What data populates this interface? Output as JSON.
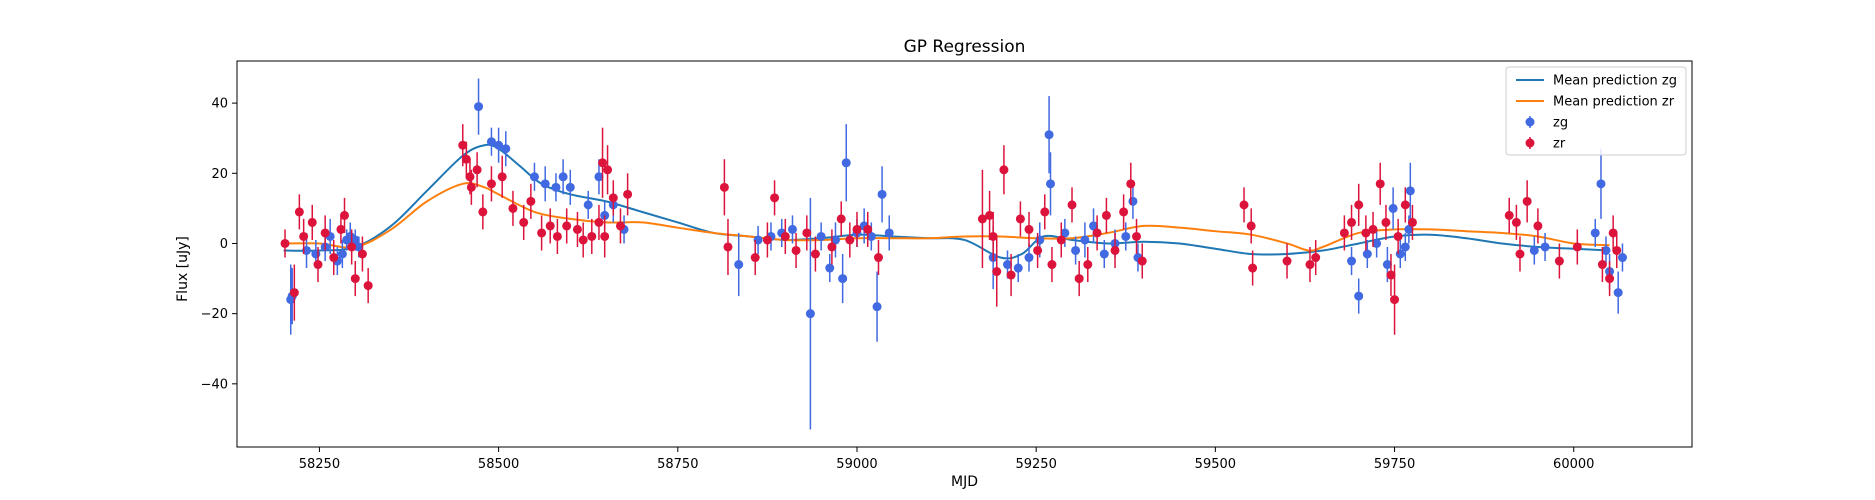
{
  "chart_data": {
    "type": "scatter",
    "title": "GP Regression",
    "xlabel": "MJD",
    "ylabel": "Flux [uJy]",
    "xlim": [
      58135,
      60165
    ],
    "ylim": [
      -58,
      52
    ],
    "xticks": [
      58250,
      58500,
      58750,
      59000,
      59250,
      59500,
      59750,
      60000
    ],
    "yticks": [
      -40,
      -20,
      0,
      20,
      40
    ],
    "grid": false,
    "legend_position": "top-right",
    "colors": {
      "zg": "#4169e1",
      "zr": "#dc143c",
      "mean_zg": "#1f77b4",
      "mean_zr": "#ff7f0e"
    },
    "lines": [
      {
        "name": "Mean prediction zg",
        "x": [
          58200,
          58250,
          58300,
          58350,
          58400,
          58450,
          58480,
          58500,
          58530,
          58560,
          58600,
          58650,
          58700,
          58750,
          58800,
          58850,
          58900,
          58950,
          59000,
          59050,
          59100,
          59150,
          59200,
          59230,
          59260,
          59300,
          59350,
          59400,
          59450,
          59500,
          59550,
          59600,
          59650,
          59700,
          59750,
          59800,
          59850,
          59900,
          59950,
          60000,
          60050
        ],
        "y": [
          -2,
          -2,
          -1,
          5,
          15,
          25,
          28,
          27,
          22,
          17,
          14,
          12,
          9,
          6,
          3,
          2,
          1,
          1.5,
          2.5,
          2,
          1.5,
          1,
          -4,
          -3,
          2,
          1,
          0,
          0.5,
          0,
          -1.5,
          -3,
          -3,
          -2,
          0,
          2,
          2.5,
          1.5,
          0,
          -1,
          -1.5,
          -2
        ]
      },
      {
        "name": "Mean prediction zr",
        "x": [
          58200,
          58250,
          58300,
          58350,
          58400,
          58450,
          58480,
          58500,
          58550,
          58600,
          58650,
          58700,
          58750,
          58800,
          58850,
          58900,
          58950,
          59000,
          59050,
          59100,
          59150,
          59200,
          59250,
          59300,
          59350,
          59400,
          59450,
          59500,
          59550,
          59600,
          59630,
          59650,
          59700,
          59750,
          59800,
          59850,
          59900,
          59950,
          60000,
          60050
        ],
        "y": [
          0,
          0,
          -1,
          4,
          12,
          17,
          16,
          14,
          9,
          7,
          6,
          6,
          4.5,
          3,
          2,
          1,
          1,
          1.5,
          1.5,
          1.5,
          2,
          2,
          1.5,
          1.5,
          3,
          5,
          4.5,
          3.5,
          2.5,
          0,
          -2,
          -1,
          3,
          4,
          4,
          3.5,
          3,
          2,
          0,
          -0.5
        ]
      }
    ],
    "series": [
      {
        "name": "zg",
        "points": [
          [
            58210,
            -16,
            10
          ],
          [
            58212,
            -15,
            8
          ],
          [
            58232,
            -2,
            5
          ],
          [
            58245,
            -3,
            4
          ],
          [
            58258,
            -1,
            4
          ],
          [
            58265,
            2,
            5
          ],
          [
            58275,
            -5,
            4
          ],
          [
            58282,
            -3,
            4
          ],
          [
            58288,
            1,
            3
          ],
          [
            58293,
            2,
            4
          ],
          [
            58300,
            1,
            3
          ],
          [
            58305,
            -1,
            3
          ],
          [
            58472,
            39,
            8
          ],
          [
            58490,
            29,
            4
          ],
          [
            58500,
            28,
            5
          ],
          [
            58510,
            27,
            5
          ],
          [
            58550,
            19,
            4
          ],
          [
            58565,
            17,
            5
          ],
          [
            58580,
            16,
            4
          ],
          [
            58590,
            19,
            5
          ],
          [
            58600,
            16,
            5
          ],
          [
            58625,
            11,
            4
          ],
          [
            58640,
            19,
            5
          ],
          [
            58648,
            8,
            4
          ],
          [
            58660,
            11,
            5
          ],
          [
            58675,
            4,
            4
          ],
          [
            58835,
            -6,
            9
          ],
          [
            58862,
            1,
            4
          ],
          [
            58880,
            2,
            4
          ],
          [
            58895,
            3,
            4
          ],
          [
            58910,
            4,
            4
          ],
          [
            58935,
            -20,
            33
          ],
          [
            58950,
            2,
            4
          ],
          [
            58962,
            -7,
            4
          ],
          [
            58970,
            1,
            5
          ],
          [
            58980,
            -10,
            7
          ],
          [
            58985,
            23,
            11
          ],
          [
            59000,
            3,
            4
          ],
          [
            59010,
            5,
            5
          ],
          [
            59020,
            2,
            4
          ],
          [
            59028,
            -18,
            10
          ],
          [
            59035,
            14,
            8
          ],
          [
            59045,
            3,
            5
          ],
          [
            59190,
            -4,
            9
          ],
          [
            59210,
            -6,
            4
          ],
          [
            59225,
            -7,
            4
          ],
          [
            59240,
            -4,
            4
          ],
          [
            59255,
            1,
            5
          ],
          [
            59268,
            31,
            11
          ],
          [
            59270,
            17,
            9
          ],
          [
            59290,
            3,
            4
          ],
          [
            59305,
            -2,
            4
          ],
          [
            59318,
            1,
            5
          ],
          [
            59330,
            5,
            5
          ],
          [
            59345,
            -3,
            4
          ],
          [
            59360,
            0,
            4
          ],
          [
            59375,
            2,
            4
          ],
          [
            59385,
            12,
            5
          ],
          [
            59392,
            -4,
            4
          ],
          [
            59690,
            -5,
            4
          ],
          [
            59700,
            -15,
            5
          ],
          [
            59712,
            -3,
            4
          ],
          [
            59725,
            0,
            4
          ],
          [
            59740,
            -6,
            5
          ],
          [
            59748,
            10,
            6
          ],
          [
            59758,
            -3,
            4
          ],
          [
            59770,
            4,
            4
          ],
          [
            59772,
            15,
            8
          ],
          [
            59765,
            -1,
            4
          ],
          [
            59945,
            -2,
            4
          ],
          [
            59960,
            -1,
            4
          ],
          [
            60030,
            3,
            4
          ],
          [
            60038,
            17,
            10
          ],
          [
            60045,
            -2,
            4
          ],
          [
            60050,
            -8,
            5
          ],
          [
            60062,
            -14,
            6
          ],
          [
            60068,
            -4,
            4
          ]
        ]
      },
      {
        "name": "zr",
        "points": [
          [
            58202,
            0,
            4
          ],
          [
            58215,
            -14,
            8
          ],
          [
            58222,
            9,
            5
          ],
          [
            58228,
            2,
            5
          ],
          [
            58240,
            6,
            5
          ],
          [
            58248,
            -6,
            5
          ],
          [
            58258,
            3,
            5
          ],
          [
            58270,
            -4,
            5
          ],
          [
            58280,
            4,
            4
          ],
          [
            58285,
            8,
            5
          ],
          [
            58295,
            -1,
            5
          ],
          [
            58300,
            -10,
            5
          ],
          [
            58310,
            -3,
            5
          ],
          [
            58318,
            -12,
            5
          ],
          [
            58450,
            28,
            6
          ],
          [
            58455,
            24,
            5
          ],
          [
            58460,
            19,
            5
          ],
          [
            58462,
            16,
            5
          ],
          [
            58470,
            21,
            5
          ],
          [
            58478,
            9,
            5
          ],
          [
            58490,
            17,
            5
          ],
          [
            58505,
            19,
            6
          ],
          [
            58520,
            10,
            5
          ],
          [
            58535,
            6,
            5
          ],
          [
            58545,
            12,
            5
          ],
          [
            58560,
            3,
            5
          ],
          [
            58572,
            5,
            5
          ],
          [
            58582,
            2,
            5
          ],
          [
            58595,
            5,
            5
          ],
          [
            58610,
            4,
            5
          ],
          [
            58618,
            1,
            5
          ],
          [
            58630,
            2,
            5
          ],
          [
            58640,
            6,
            5
          ],
          [
            58645,
            23,
            10
          ],
          [
            58648,
            2,
            6
          ],
          [
            58652,
            21,
            7
          ],
          [
            58660,
            13,
            5
          ],
          [
            58670,
            5,
            5
          ],
          [
            58680,
            14,
            6
          ],
          [
            58815,
            16,
            8
          ],
          [
            58820,
            -1,
            8
          ],
          [
            58858,
            -4,
            5
          ],
          [
            58875,
            1,
            5
          ],
          [
            58885,
            13,
            5
          ],
          [
            58900,
            2,
            5
          ],
          [
            58915,
            -2,
            5
          ],
          [
            58930,
            3,
            5
          ],
          [
            58942,
            -3,
            5
          ],
          [
            58965,
            -1,
            5
          ],
          [
            58978,
            7,
            5
          ],
          [
            58990,
            1,
            5
          ],
          [
            59000,
            4,
            5
          ],
          [
            59015,
            4,
            5
          ],
          [
            59030,
            -4,
            5
          ],
          [
            59175,
            7,
            14
          ],
          [
            59185,
            8,
            7
          ],
          [
            59190,
            2,
            7
          ],
          [
            59195,
            -8,
            10
          ],
          [
            59205,
            21,
            7
          ],
          [
            59215,
            -9,
            6
          ],
          [
            59228,
            7,
            5
          ],
          [
            59240,
            4,
            5
          ],
          [
            59252,
            -2,
            5
          ],
          [
            59262,
            9,
            5
          ],
          [
            59272,
            -6,
            5
          ],
          [
            59285,
            1,
            5
          ],
          [
            59300,
            11,
            5
          ],
          [
            59310,
            -10,
            5
          ],
          [
            59322,
            -6,
            5
          ],
          [
            59335,
            3,
            5
          ],
          [
            59348,
            8,
            5
          ],
          [
            59360,
            -2,
            5
          ],
          [
            59372,
            9,
            5
          ],
          [
            59382,
            17,
            6
          ],
          [
            59390,
            2,
            5
          ],
          [
            59398,
            -5,
            5
          ],
          [
            59540,
            11,
            5
          ],
          [
            59550,
            5,
            5
          ],
          [
            59552,
            -7,
            5
          ],
          [
            59600,
            -5,
            5
          ],
          [
            59632,
            -6,
            5
          ],
          [
            59640,
            -4,
            5
          ],
          [
            59680,
            3,
            5
          ],
          [
            59690,
            6,
            5
          ],
          [
            59700,
            11,
            6
          ],
          [
            59710,
            3,
            5
          ],
          [
            59720,
            4,
            5
          ],
          [
            59730,
            17,
            6
          ],
          [
            59738,
            6,
            5
          ],
          [
            59745,
            -9,
            6
          ],
          [
            59750,
            -16,
            10
          ],
          [
            59755,
            2,
            5
          ],
          [
            59765,
            11,
            5
          ],
          [
            59775,
            6,
            5
          ],
          [
            59910,
            8,
            5
          ],
          [
            59920,
            6,
            5
          ],
          [
            59925,
            -3,
            5
          ],
          [
            59935,
            12,
            6
          ],
          [
            59950,
            5,
            5
          ],
          [
            59980,
            -5,
            5
          ],
          [
            60005,
            -1,
            5
          ],
          [
            60040,
            -6,
            5
          ],
          [
            60050,
            -10,
            5
          ],
          [
            60055,
            3,
            5
          ],
          [
            60060,
            -2,
            5
          ]
        ]
      }
    ]
  }
}
